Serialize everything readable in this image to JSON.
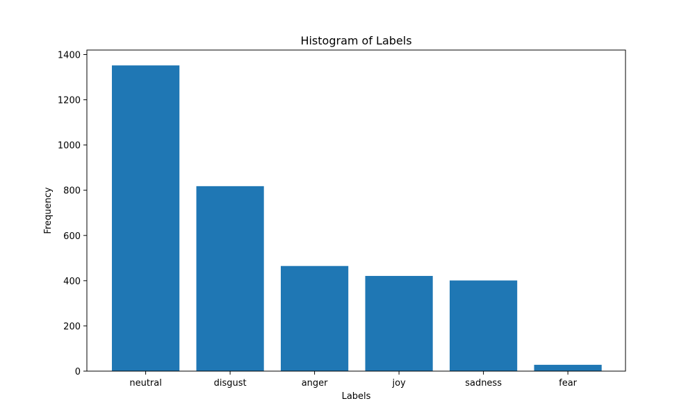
{
  "chart_data": {
    "type": "bar",
    "title": "Histogram of Labels",
    "xlabel": "Labels",
    "ylabel": "Frequency",
    "categories": [
      "neutral",
      "disgust",
      "anger",
      "joy",
      "sadness",
      "fear"
    ],
    "values": [
      1352,
      818,
      465,
      421,
      401,
      28
    ],
    "ylim": [
      0,
      1420
    ],
    "yticks": [
      0,
      200,
      400,
      600,
      800,
      1000,
      1200,
      1400
    ],
    "ytick_labels": [
      "0",
      "200",
      "400",
      "600",
      "800",
      "1000",
      "1200",
      "1400"
    ],
    "bar_color": "#1f77b4",
    "grid": false,
    "legend": "none"
  }
}
